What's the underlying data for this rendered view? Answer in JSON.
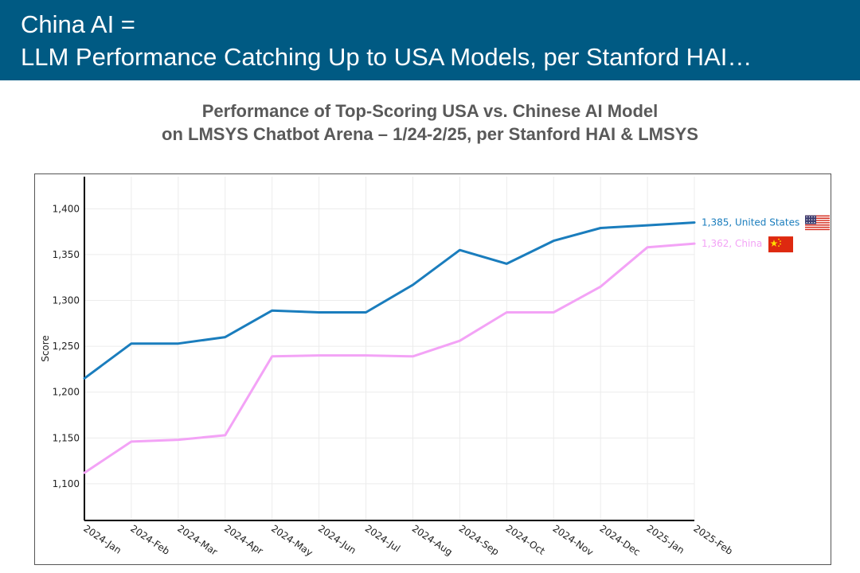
{
  "header": {
    "title_line1": "China AI =",
    "title_line2": "LLM Performance Catching Up to USA Models, per Stanford HAI…"
  },
  "chart_data": {
    "type": "line",
    "title_line1": "Performance of Top-Scoring USA vs. Chinese AI Model",
    "title_line2": "on LMSYS Chatbot Arena – 1/24-2/25, per Stanford HAI & LMSYS",
    "xlabel": "",
    "ylabel": "Score",
    "ylim": [
      1060,
      1435
    ],
    "yticks": [
      1100,
      1150,
      1200,
      1250,
      1300,
      1350,
      1400
    ],
    "ytick_labels": [
      "1,100",
      "1,150",
      "1,200",
      "1,250",
      "1,300",
      "1,350",
      "1,400"
    ],
    "categories": [
      "2024-Jan",
      "2024-Feb",
      "2024-Mar",
      "2024-Apr",
      "2024-May",
      "2024-Jun",
      "2024-Jul",
      "2024-Aug",
      "2024-Sep",
      "2024-Oct",
      "2024-Nov",
      "2024-Dec",
      "2025-Jan",
      "2025-Feb"
    ],
    "grid": true,
    "series": [
      {
        "name": "United States",
        "color": "#1a7dbd",
        "end_label": "1,385, United States",
        "flag": "us-flag",
        "values": [
          1215,
          1253,
          1253,
          1260,
          1289,
          1287,
          1287,
          1317,
          1355,
          1340,
          1365,
          1379,
          1382,
          1385
        ]
      },
      {
        "name": "China",
        "color": "#f3a3f6",
        "end_label": "1,362, China",
        "flag": "china-flag",
        "values": [
          1112,
          1146,
          1148,
          1153,
          1239,
          1240,
          1240,
          1239,
          1256,
          1287,
          1287,
          1315,
          1358,
          1362
        ]
      }
    ]
  }
}
